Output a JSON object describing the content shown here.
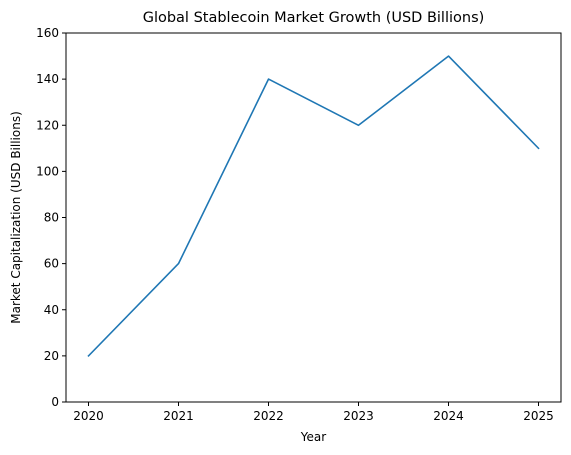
{
  "chart_data": {
    "type": "line",
    "title": "Global Stablecoin Market Growth (USD Billions)",
    "xlabel": "Year",
    "ylabel": "Market Capitalization (USD Billions)",
    "x": [
      2020,
      2021,
      2022,
      2023,
      2024,
      2025
    ],
    "series": [
      {
        "values": [
          20,
          60,
          140,
          120,
          150,
          110
        ],
        "color": "#1f77b4"
      }
    ],
    "xticks": [
      "2020",
      "2021",
      "2022",
      "2023",
      "2024",
      "2025"
    ],
    "yticks": [
      0,
      20,
      40,
      60,
      80,
      100,
      120,
      140,
      160
    ],
    "xlim": [
      2019.75,
      2025.25
    ],
    "ylim": [
      0,
      160
    ],
    "grid": false
  }
}
